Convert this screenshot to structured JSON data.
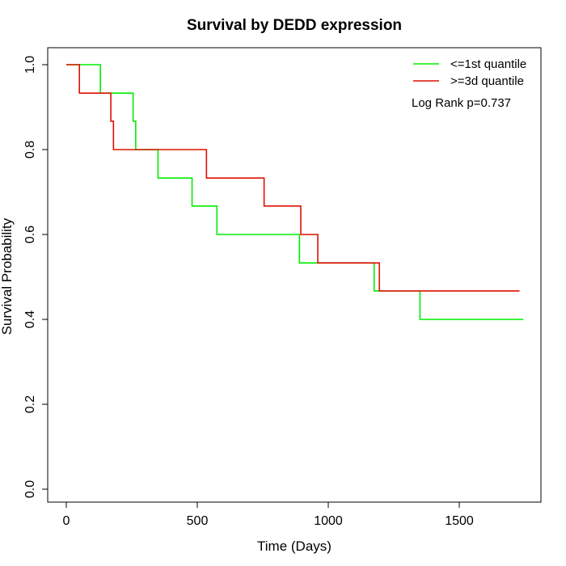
{
  "chart_data": {
    "type": "line",
    "subtype": "kaplan-meier step",
    "title": "Survival by DEDD expression",
    "xlabel": "Time (Days)",
    "ylabel": "Survival Probability",
    "xlim": [
      0,
      1750
    ],
    "ylim": [
      0,
      1
    ],
    "x_ticks": [
      0,
      500,
      1000,
      1500
    ],
    "x_tick_labels": [
      "0",
      "500",
      "1000",
      "1500"
    ],
    "y_ticks": [
      0,
      0.2,
      0.4,
      0.6,
      0.8,
      1
    ],
    "y_tick_labels": [
      "0.0",
      "0.2",
      "0.4",
      "0.6",
      "0.8",
      "1.0"
    ],
    "grid": false,
    "legend_position": "top-right",
    "annotation": "Log Rank p=0.737",
    "series": [
      {
        "name": "<=1st quantile",
        "color": "#00ee00",
        "steps": [
          [
            0,
            1.0
          ],
          [
            130,
            0.933
          ],
          [
            255,
            0.867
          ],
          [
            265,
            0.8
          ],
          [
            350,
            0.733
          ],
          [
            480,
            0.667
          ],
          [
            575,
            0.6
          ],
          [
            890,
            0.533
          ],
          [
            1175,
            0.467
          ],
          [
            1350,
            0.4
          ]
        ],
        "end_x": 1745
      },
      {
        "name": ">=3d quantile",
        "color": "#dd1100",
        "steps": [
          [
            0,
            1.0
          ],
          [
            50,
            0.933
          ],
          [
            170,
            0.867
          ],
          [
            180,
            0.8
          ],
          [
            535,
            0.733
          ],
          [
            755,
            0.667
          ],
          [
            895,
            0.6
          ],
          [
            960,
            0.533
          ],
          [
            1195,
            0.467
          ]
        ],
        "end_x": 1730
      }
    ]
  }
}
